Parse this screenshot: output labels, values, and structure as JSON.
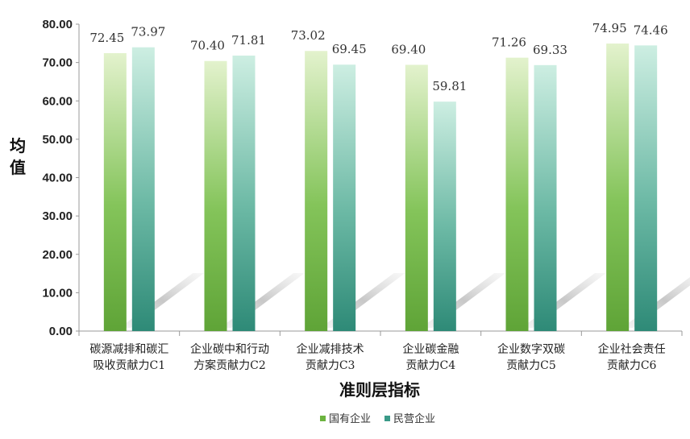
{
  "chart_data": {
    "type": "bar",
    "categories": [
      [
        "碳源减排和碳汇",
        "吸收贡献力C1"
      ],
      [
        "企业碳中和行动",
        "方案贡献力C2"
      ],
      [
        "企业减排技术",
        "贡献力C3"
      ],
      [
        "企业碳金融",
        "贡献力C4"
      ],
      [
        "企业数字双碳",
        "贡献力C5"
      ],
      [
        "企业社会责任",
        "贡献力C6"
      ]
    ],
    "series": [
      {
        "name": "国有企业",
        "values": [
          72.45,
          70.4,
          73.02,
          69.4,
          71.26,
          74.95
        ],
        "color": "#6cb33f"
      },
      {
        "name": "民营企业",
        "values": [
          73.97,
          71.81,
          69.45,
          59.81,
          69.33,
          74.46
        ],
        "color": "#3a9a88"
      }
    ],
    "value_labels": [
      [
        "72.45",
        "70.40",
        "73.02",
        "69.40",
        "71.26",
        "74.95"
      ],
      [
        "73.97",
        "71.81",
        "69.45",
        "59.81",
        "69.33",
        "74.46"
      ]
    ],
    "yticks": [
      "0.00",
      "10.00",
      "20.00",
      "30.00",
      "40.00",
      "50.00",
      "60.00",
      "70.00",
      "80.00"
    ],
    "ylim": [
      0,
      80
    ],
    "xlabel": "准则层指标",
    "ylabel": "均值",
    "legend_position": "bottom",
    "grid": false
  }
}
